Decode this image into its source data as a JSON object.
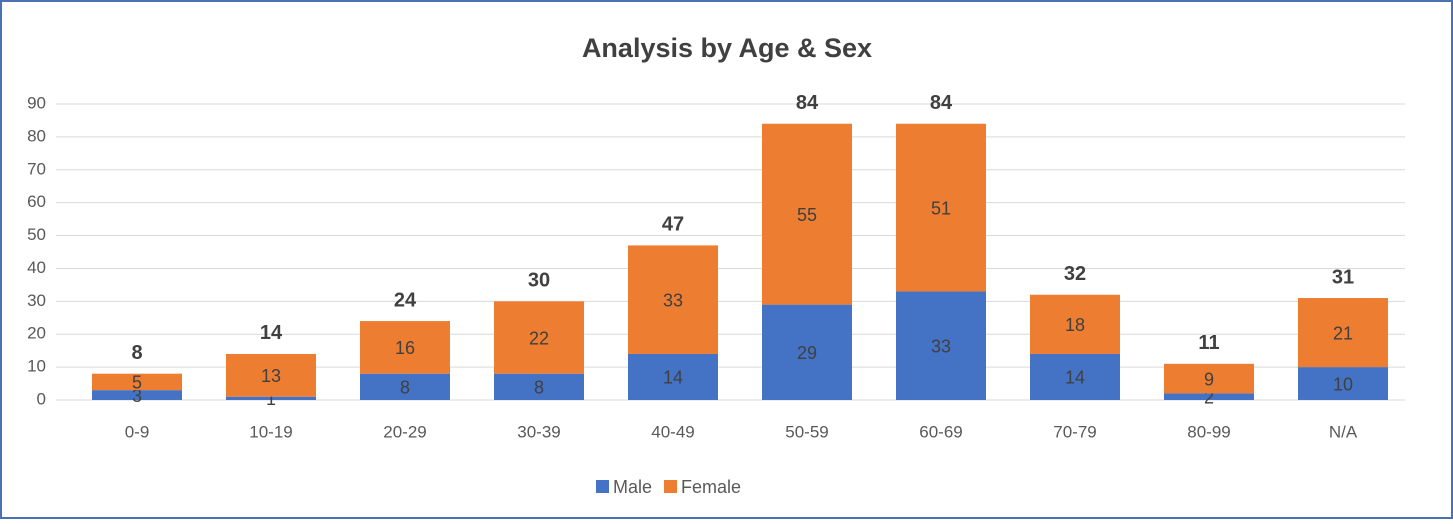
{
  "chart_data": {
    "type": "stacked_bar",
    "title": "Analysis by Age & Sex",
    "categories": [
      "0-9",
      "10-19",
      "20-29",
      "30-39",
      "40-49",
      "50-59",
      "60-69",
      "70-79",
      "80-99",
      "N/A"
    ],
    "series": [
      {
        "name": "Male",
        "color": "#4472c4",
        "values": [
          3,
          1,
          8,
          8,
          14,
          29,
          33,
          14,
          2,
          10
        ]
      },
      {
        "name": "Female",
        "color": "#ed7d31",
        "values": [
          5,
          13,
          16,
          22,
          33,
          55,
          51,
          18,
          9,
          21
        ]
      }
    ],
    "totals": [
      8,
      14,
      24,
      30,
      47,
      84,
      84,
      32,
      11,
      31
    ],
    "ylim": [
      0,
      90
    ],
    "yticks": [
      0,
      10,
      20,
      30,
      40,
      50,
      60,
      70,
      80,
      90
    ],
    "grid": true,
    "legend": "bottom"
  }
}
